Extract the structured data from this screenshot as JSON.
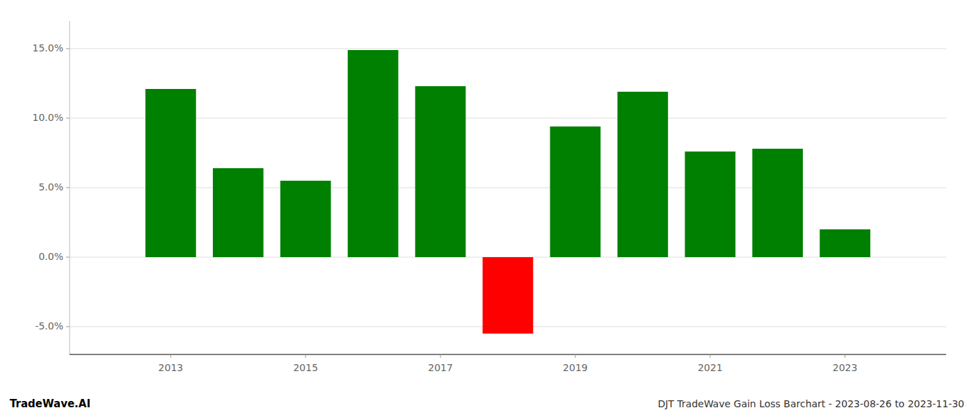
{
  "chart_data": {
    "type": "bar",
    "title": "DJT TradeWave Gain Loss Barchart - 2023-08-26 to 2023-11-30",
    "annotations": [
      "TradeWave.AI"
    ],
    "x": [
      2013,
      2014,
      2015,
      2016,
      2017,
      2018,
      2019,
      2020,
      2021,
      2022,
      2023
    ],
    "values": [
      0.121,
      0.064,
      0.055,
      0.149,
      0.123,
      -0.055,
      0.094,
      0.119,
      0.076,
      0.078,
      0.02
    ],
    "colors": [
      "#008000",
      "#008000",
      "#008000",
      "#008000",
      "#008000",
      "#ff0000",
      "#008000",
      "#008000",
      "#008000",
      "#008000",
      "#008000"
    ],
    "xlim": [
      2011.5,
      2024.5
    ],
    "xticks": [
      2013,
      2015,
      2017,
      2019,
      2021,
      2023
    ],
    "ylim": [
      -0.07,
      0.17
    ],
    "yticks": [
      {
        "value": -0.05,
        "label": "-5.0%"
      },
      {
        "value": 0.0,
        "label": "0.0%"
      },
      {
        "value": 0.05,
        "label": "5.0%"
      },
      {
        "value": 0.1,
        "label": "10.0%"
      },
      {
        "value": 0.15,
        "label": "15.0%"
      }
    ],
    "grid": true
  }
}
